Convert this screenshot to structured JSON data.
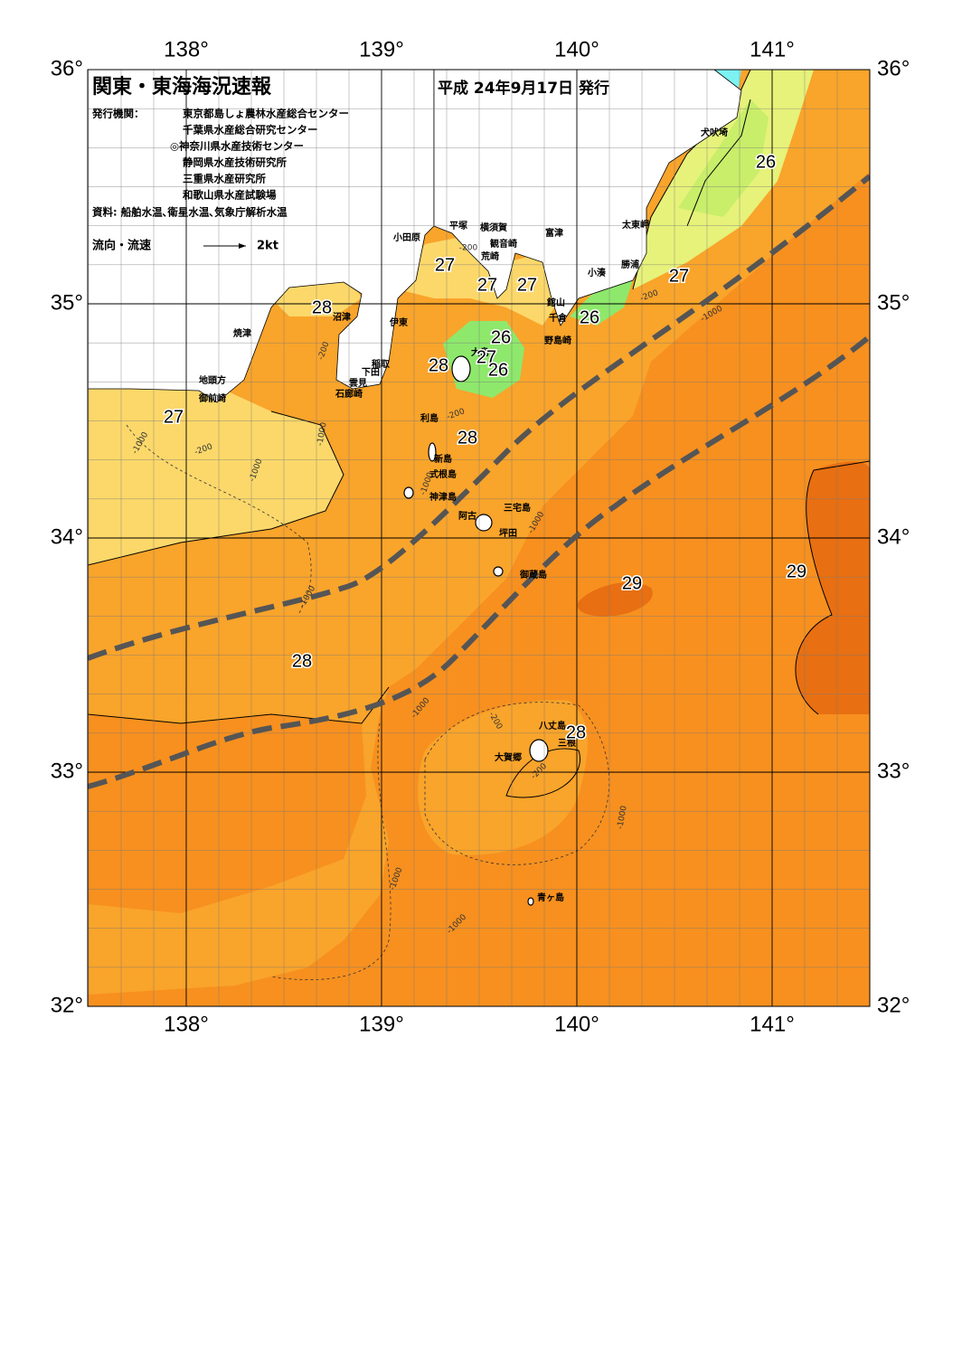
{
  "header": {
    "title": "関東・東海海況速報",
    "date": "平成 24年9月17日 発行",
    "issuer_label": "発行機関：",
    "issuers": [
      "東京都島しょ農林水産総合センター",
      "千葉県水産総合研究センター",
      "◎神奈川県水産技術センター",
      "静岡県水産技術研究所",
      "三重県水産研究所",
      "和歌山県水産試験場"
    ],
    "source": "資料: 船舶水温､衛星水温､気象庁解析水温",
    "legend_label": "流向・流速",
    "legend_speed": "2kt"
  },
  "map": {
    "lon_ticks": [
      {
        "value": 138,
        "label": "138°"
      },
      {
        "value": 139,
        "label": "139°"
      },
      {
        "value": 140,
        "label": "140°"
      },
      {
        "value": 141,
        "label": "141°"
      }
    ],
    "lat_ticks": [
      {
        "value": 36,
        "label": "36°"
      },
      {
        "value": 35,
        "label": "35°"
      },
      {
        "value": 34,
        "label": "34°"
      },
      {
        "value": 33,
        "label": "33°"
      },
      {
        "value": 32,
        "label": "32°"
      }
    ],
    "places": [
      "犬吠埼",
      "太東岬",
      "勝浦",
      "小湊",
      "館山",
      "千倉",
      "野島崎",
      "富津",
      "横須賀",
      "観音崎",
      "荒崎",
      "平塚",
      "小田原",
      "沼津",
      "伊東",
      "焼津",
      "稲取",
      "下田",
      "雲見",
      "石廊崎",
      "地頭方",
      "御前崎",
      "大島",
      "利島",
      "新島",
      "式根島",
      "神津島",
      "三宅島",
      "阿古",
      "坪田",
      "御蔵島",
      "八丈島",
      "三根",
      "大賀郷",
      "青ヶ島"
    ],
    "temperature_labels": [
      "26",
      "27",
      "27",
      "27",
      "27",
      "28",
      "26",
      "26",
      "27",
      "26",
      "28",
      "28",
      "27",
      "29",
      "29",
      "28",
      "28"
    ],
    "depth_labels": [
      "-200",
      "-200",
      "-200",
      "-200",
      "-1000",
      "-1000",
      "-1000",
      "-200",
      "-1000",
      "-1000",
      "-1000",
      "-1000",
      "-200",
      "-1000",
      "-1000",
      "-1000",
      "-200",
      "-1000"
    ]
  }
}
